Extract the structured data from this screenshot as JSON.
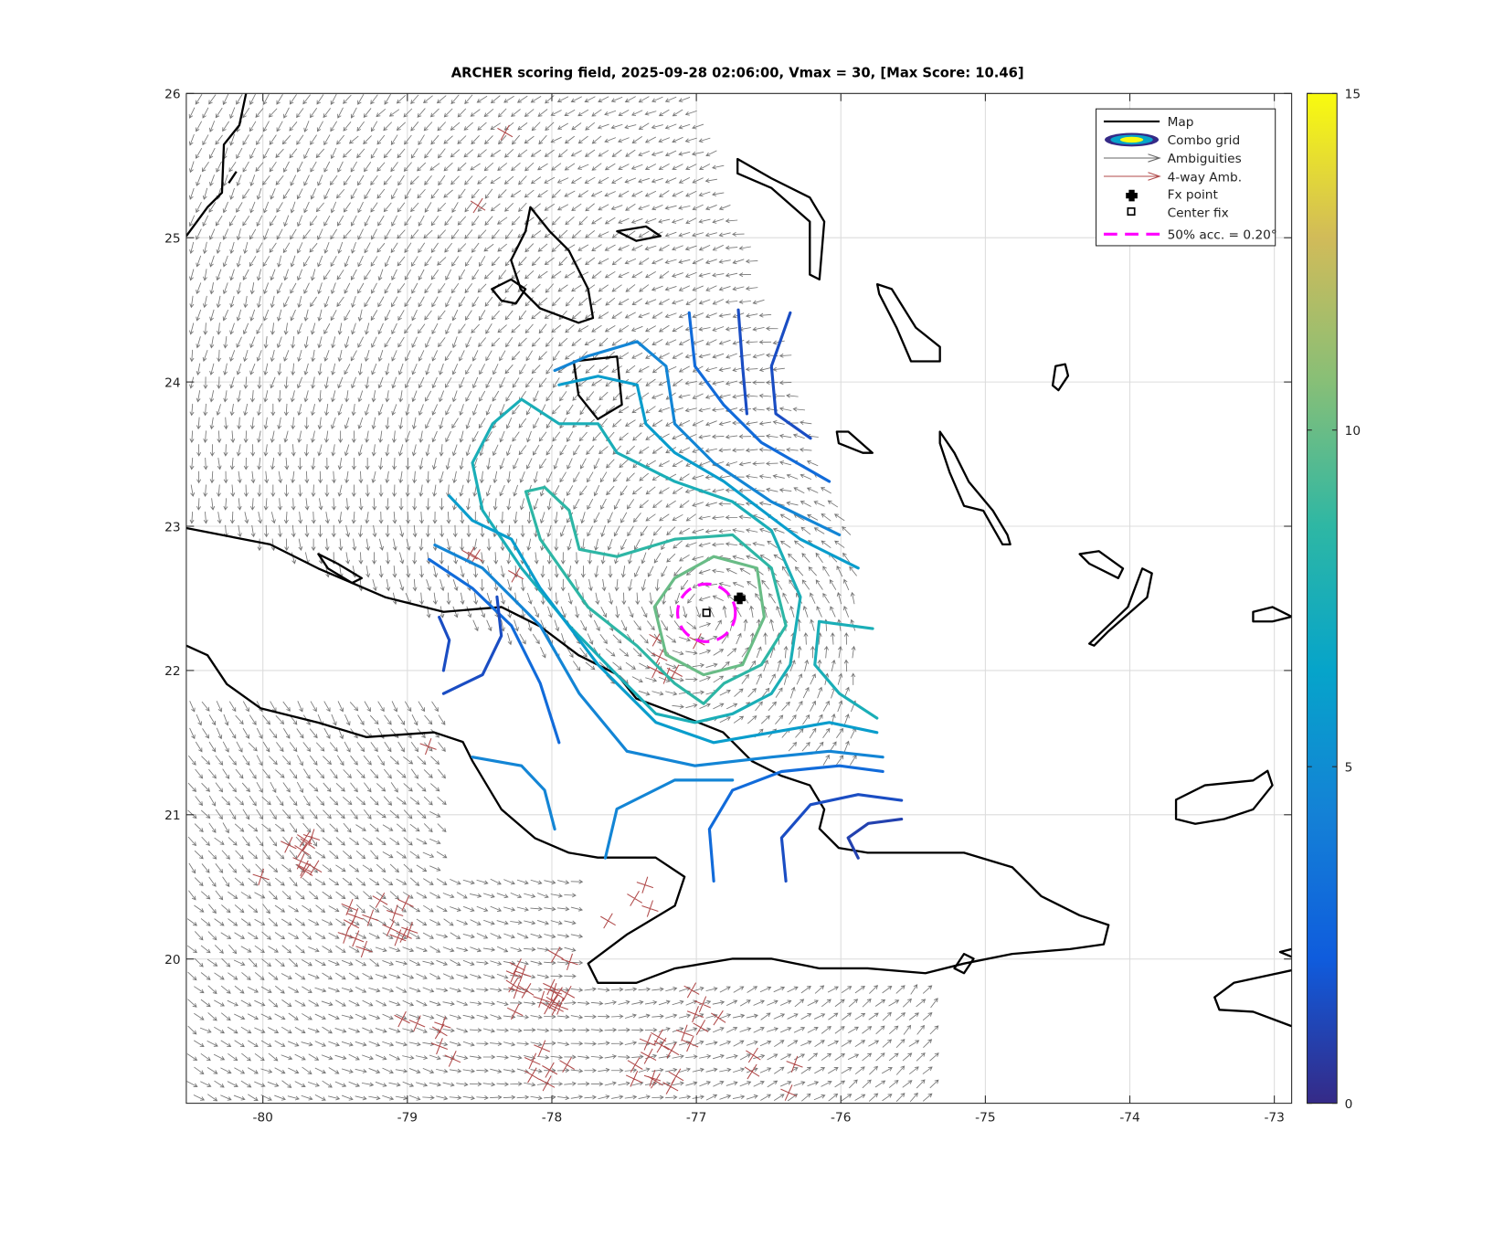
{
  "chart_data": {
    "type": "contour",
    "title": "ARCHER scoring field, 2025-09-28 02:06:00, Vmax = 30, [Max Score: 10.46]",
    "xlim": [
      -80.53,
      -72.88
    ],
    "ylim": [
      19,
      26
    ],
    "xticks": [
      -80,
      -79,
      -78,
      -77,
      -76,
      -75,
      -74,
      -73
    ],
    "yticks": [
      20,
      21,
      22,
      23,
      24,
      25,
      26
    ],
    "grid": true,
    "clim": [
      0,
      15
    ],
    "cticks": [
      0,
      5,
      10,
      15
    ],
    "colormap": [
      "#352a87",
      "#0f5cdd",
      "#1481d6",
      "#06a4ca",
      "#2eb7a4",
      "#87bf77",
      "#d1bb59",
      "#f9fb0e"
    ],
    "colors": {
      "map": "#000000",
      "ambiguities": "#666666",
      "four_way": "#b04a4a",
      "accuracy": "#ff00ff",
      "marker": "#000000"
    },
    "contours": [
      {
        "level": 10,
        "lon": [
          -77.15,
          -76.88,
          -76.58,
          -76.53,
          -76.68,
          -76.95,
          -77.21,
          -77.29,
          -77.15
        ],
        "lat": [
          22.64,
          22.79,
          22.71,
          22.37,
          22.04,
          21.97,
          22.11,
          22.44,
          22.64
        ]
      },
      {
        "level": 8.5,
        "lon": [
          -78.18,
          -78.05,
          -77.88,
          -77.81,
          -77.55,
          -77.15,
          -76.75,
          -76.48,
          -76.38,
          -76.55,
          -76.81,
          -76.95,
          -77.15,
          -77.41,
          -77.75,
          -78.08,
          -78.18
        ],
        "lat": [
          23.24,
          23.27,
          23.11,
          22.84,
          22.79,
          22.91,
          22.94,
          22.71,
          22.31,
          22.04,
          21.91,
          21.77,
          21.91,
          22.17,
          22.44,
          22.91,
          23.24
        ]
      },
      {
        "level": 7.5,
        "lon": [
          -78.41,
          -78.21,
          -77.95,
          -77.68,
          -77.55,
          -77.15,
          -76.75,
          -76.48,
          -76.28,
          -76.35,
          -76.48,
          -76.75,
          -77.01,
          -77.28,
          -77.55,
          -77.88,
          -78.21,
          -78.48,
          -78.55,
          -78.41
        ],
        "lat": [
          23.71,
          23.88,
          23.71,
          23.71,
          23.51,
          23.31,
          23.17,
          22.97,
          22.51,
          22.04,
          21.84,
          21.7,
          21.64,
          21.7,
          21.97,
          22.31,
          22.71,
          23.11,
          23.44,
          23.71
        ]
      },
      {
        "level": 7.5,
        "lon": [
          -75.78,
          -76.15,
          -76.18,
          -76.01,
          -75.75
        ],
        "lat": [
          22.29,
          22.34,
          22.04,
          21.84,
          21.67
        ]
      },
      {
        "level": 6,
        "lon": [
          -78.71,
          -78.55,
          -78.28,
          -78.08,
          -77.68,
          -77.28,
          -76.88,
          -76.48,
          -76.08,
          -75.75
        ],
        "lat": [
          23.21,
          23.04,
          22.91,
          22.57,
          22.04,
          21.64,
          21.5,
          21.57,
          21.64,
          21.57
        ]
      },
      {
        "level": 6,
        "lon": [
          -77.95,
          -77.68,
          -77.41,
          -77.35,
          -77.15,
          -76.81,
          -76.28,
          -75.88
        ],
        "lat": [
          23.98,
          24.04,
          23.98,
          23.71,
          23.51,
          23.31,
          22.91,
          22.71
        ]
      },
      {
        "level": 4.5,
        "lon": [
          -78.81,
          -78.48,
          -78.08,
          -77.81,
          -77.48,
          -77.01,
          -76.48,
          -76.08,
          -75.71
        ],
        "lat": [
          22.87,
          22.71,
          22.31,
          21.84,
          21.44,
          21.34,
          21.4,
          21.44,
          21.4
        ]
      },
      {
        "level": 4.5,
        "lon": [
          -77.98,
          -77.75,
          -77.41,
          -77.21,
          -77.15,
          -76.88,
          -76.48,
          -76.01
        ],
        "lat": [
          24.08,
          24.18,
          24.28,
          24.11,
          23.71,
          23.44,
          23.17,
          22.94
        ]
      },
      {
        "level": 4.5,
        "lon": [
          -78.55,
          -78.21,
          -78.05,
          -77.98
        ],
        "lat": [
          21.4,
          21.34,
          21.17,
          20.9
        ]
      },
      {
        "level": 4.5,
        "lon": [
          -77.63,
          -77.55,
          -77.15,
          -76.75
        ],
        "lat": [
          20.7,
          21.04,
          21.24,
          21.24
        ]
      },
      {
        "level": 3,
        "lon": [
          -78.85,
          -78.55,
          -78.28,
          -78.08,
          -77.95
        ],
        "lat": [
          22.77,
          22.57,
          22.31,
          21.91,
          21.5
        ]
      },
      {
        "level": 3,
        "lon": [
          -77.05,
          -77.01,
          -76.81,
          -76.55,
          -76.08
        ],
        "lat": [
          24.48,
          24.11,
          23.84,
          23.58,
          23.31
        ]
      },
      {
        "level": 3,
        "lon": [
          -76.88,
          -76.91,
          -76.75,
          -76.41,
          -76.01,
          -75.71
        ],
        "lat": [
          20.54,
          20.9,
          21.17,
          21.3,
          21.34,
          21.3
        ]
      },
      {
        "level": 1.5,
        "lon": [
          -78.78,
          -78.71,
          -78.75
        ],
        "lat": [
          22.37,
          22.21,
          22.0
        ]
      },
      {
        "level": 1.5,
        "lon": [
          -78.75,
          -78.48,
          -78.35,
          -78.38
        ],
        "lat": [
          21.84,
          21.97,
          22.24,
          22.51
        ]
      },
      {
        "level": 1.5,
        "lon": [
          -76.71,
          -76.68,
          -76.65
        ],
        "lat": [
          24.5,
          24.11,
          23.78
        ]
      },
      {
        "level": 1.5,
        "lon": [
          -76.35,
          -76.48,
          -76.45,
          -76.21
        ],
        "lat": [
          24.48,
          24.11,
          23.78,
          23.61
        ]
      },
      {
        "level": 1.5,
        "lon": [
          -76.38,
          -76.41,
          -76.21,
          -75.88,
          -75.58
        ],
        "lat": [
          20.54,
          20.84,
          21.07,
          21.14,
          21.1
        ]
      },
      {
        "level": 1,
        "lon": [
          -75.88,
          -75.95,
          -75.81,
          -75.58
        ],
        "lat": [
          20.7,
          20.84,
          20.94,
          20.97
        ]
      }
    ],
    "fx_point": {
      "lon": -76.7,
      "lat": 22.5
    },
    "center_fix": {
      "lon": -76.93,
      "lat": 22.4
    },
    "acc_radius": 0.2,
    "legend": {
      "location": "northeast",
      "entries": [
        "Map",
        "Combo grid",
        "Ambiguities",
        "4-way Amb.",
        "Fx point",
        "Center fix",
        "50% acc. = 0.20°"
      ]
    }
  }
}
